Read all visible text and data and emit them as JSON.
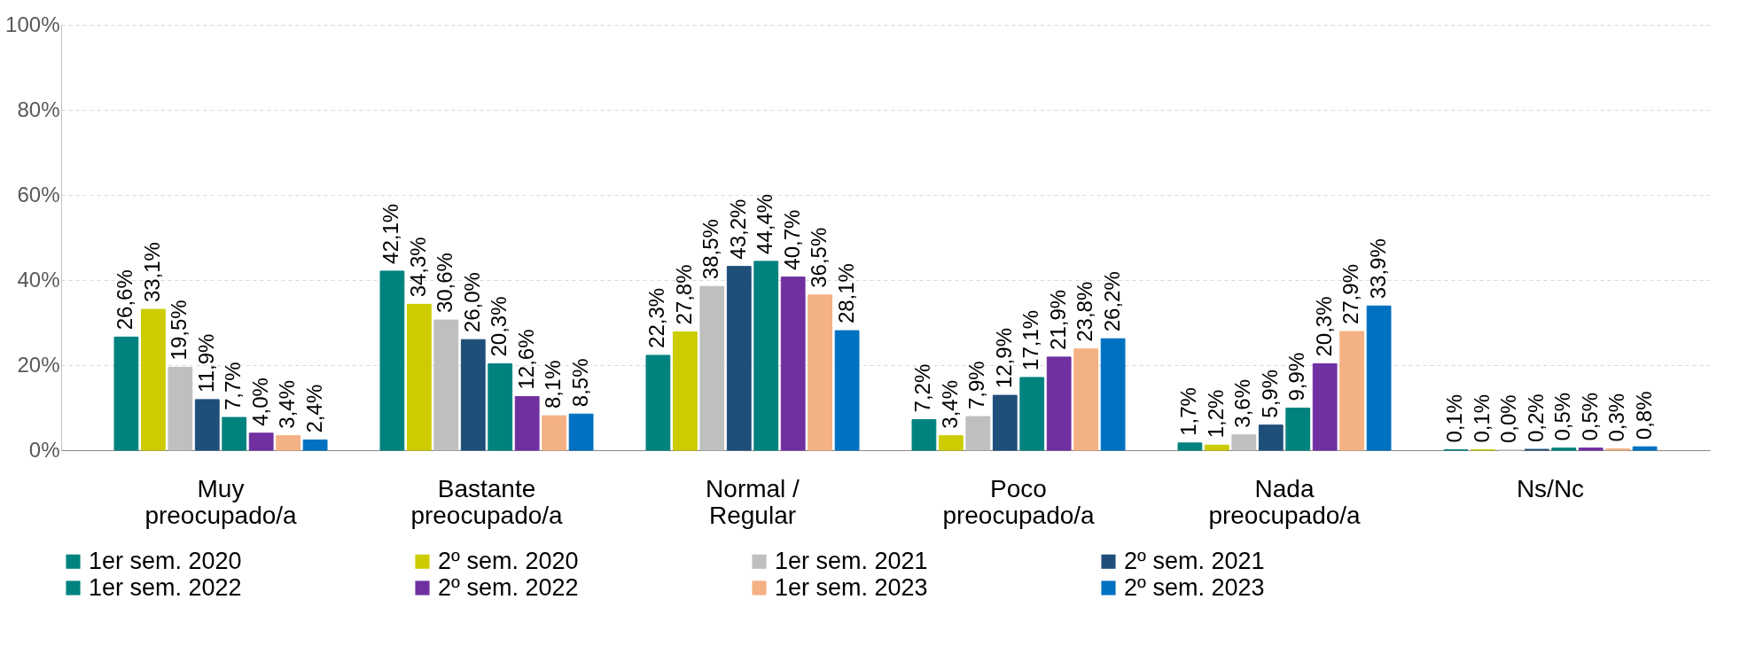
{
  "chart_data": {
    "type": "bar",
    "categories": [
      "Muy preocupado/a",
      "Bastante preocupado/a",
      "Normal / Regular",
      "Poco preocupado/a",
      "Nada preocupado/a",
      "Ns/Nc"
    ],
    "series": [
      {
        "name": "1er sem. 2020",
        "color": "#00827f",
        "values": [
          26.6,
          42.1,
          22.3,
          7.2,
          1.7,
          0.1
        ],
        "value_labels": [
          "26,6%",
          "42,1%",
          "22,3%",
          "7,2%",
          "1,7%",
          "0,1%"
        ]
      },
      {
        "name": "2º sem. 2020",
        "color": "#cccc00",
        "values": [
          33.1,
          34.3,
          27.8,
          3.4,
          1.2,
          0.1
        ],
        "value_labels": [
          "33,1%",
          "34,3%",
          "27,8%",
          "3,4%",
          "1,2%",
          "0,1%"
        ]
      },
      {
        "name": "1er sem. 2021",
        "color": "#bfbfbf",
        "values": [
          19.5,
          30.6,
          38.5,
          7.9,
          3.6,
          0.0
        ],
        "value_labels": [
          "19,5%",
          "30,6%",
          "38,5%",
          "7,9%",
          "3,6%",
          "0,0%"
        ]
      },
      {
        "name": "2º sem. 2021",
        "color": "#1f4e79",
        "values": [
          11.9,
          26.0,
          43.2,
          12.9,
          5.9,
          0.2
        ],
        "value_labels": [
          "11,9%",
          "26,0%",
          "43,2%",
          "12,9%",
          "5,9%",
          "0,2%"
        ]
      },
      {
        "name": "1er sem. 2022",
        "color": "#00827f",
        "values": [
          7.7,
          20.3,
          44.4,
          17.1,
          9.9,
          0.5
        ],
        "value_labels": [
          "7,7%",
          "20,3%",
          "44,4%",
          "17,1%",
          "9,9%",
          "0,5%"
        ]
      },
      {
        "name": "2º sem. 2022",
        "color": "#7030a0",
        "values": [
          4.0,
          12.6,
          40.7,
          21.9,
          20.3,
          0.5
        ],
        "value_labels": [
          "4,0%",
          "12,6%",
          "40,7%",
          "21,9%",
          "20,3%",
          "0,5%"
        ]
      },
      {
        "name": "1er sem. 2023",
        "color": "#f4b183",
        "values": [
          3.4,
          8.1,
          36.5,
          23.8,
          27.9,
          0.3
        ],
        "value_labels": [
          "3,4%",
          "8,1%",
          "36,5%",
          "23,8%",
          "27,9%",
          "0,3%"
        ]
      },
      {
        "name": "2º sem. 2023",
        "color": "#0070c0",
        "values": [
          2.4,
          8.5,
          28.1,
          26.2,
          33.9,
          0.8
        ],
        "value_labels": [
          "2,4%",
          "8,5%",
          "28,1%",
          "26,2%",
          "33,9%",
          "0,8%"
        ]
      }
    ],
    "ylim": [
      0,
      100
    ],
    "yticks": [
      {
        "value": 0,
        "label": "0%"
      },
      {
        "value": 20,
        "label": "20%"
      },
      {
        "value": 40,
        "label": "40%"
      },
      {
        "value": 60,
        "label": "60%"
      },
      {
        "value": 80,
        "label": "80%"
      },
      {
        "value": 100,
        "label": "100%"
      }
    ],
    "grid": "y",
    "legend": "bottom"
  }
}
